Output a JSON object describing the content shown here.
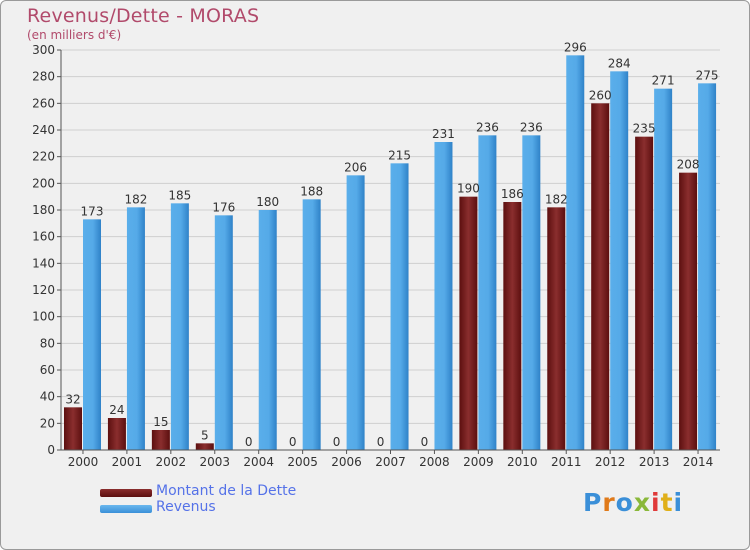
{
  "header": {
    "title": "Revenus/Dette - MORAS",
    "subtitle": "(en milliers d'€)"
  },
  "chart_data": {
    "type": "bar",
    "title": "Revenus/Dette - MORAS",
    "subtitle": "(en milliers d'€)",
    "xlabel": "",
    "ylabel": "",
    "ylim": [
      0,
      300
    ],
    "ytick_step": 20,
    "grid": true,
    "legend_position": "bottom-left",
    "categories": [
      "2000",
      "2001",
      "2002",
      "2003",
      "2004",
      "2005",
      "2006",
      "2007",
      "2008",
      "2009",
      "2010",
      "2011",
      "2012",
      "2013",
      "2014"
    ],
    "series": [
      {
        "name": "Montant de la Dette",
        "color": "#7a1e1e",
        "values": [
          32,
          24,
          15,
          5,
          0,
          0,
          0,
          0,
          0,
          190,
          186,
          182,
          260,
          235,
          208
        ]
      },
      {
        "name": "Revenus",
        "color": "#4a9fe0",
        "values": [
          173,
          182,
          185,
          176,
          180,
          188,
          206,
          215,
          231,
          236,
          236,
          296,
          284,
          271,
          275
        ]
      }
    ]
  },
  "logo": {
    "text": "Proxiti",
    "letters": [
      "P",
      "r",
      "o",
      "x",
      "i",
      "t",
      "i"
    ],
    "colors": [
      "#3a8fd8",
      "#e07a1a",
      "#3a8fd8",
      "#8ab83a",
      "#e03a3a",
      "#e0b01a",
      "#3a8fd8"
    ]
  }
}
